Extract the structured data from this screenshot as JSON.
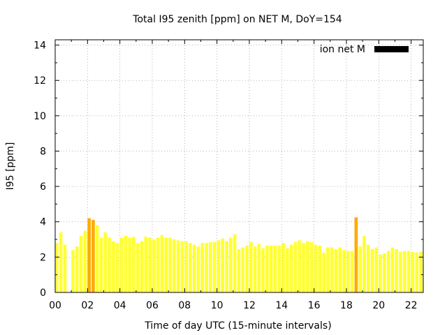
{
  "chart_data": {
    "type": "bar",
    "title": "Total I95 zenith [ppm] on NET M, DoY=154",
    "xlabel": "Time of day UTC (15-minute intervals)",
    "ylabel": "I95 [ppm]",
    "xlim": [
      0,
      22.75
    ],
    "ylim": [
      0,
      14.3
    ],
    "x_ticks": [
      0,
      2,
      4,
      6,
      8,
      10,
      12,
      14,
      16,
      18,
      20,
      22
    ],
    "x_tick_labels": [
      "00",
      "02",
      "04",
      "06",
      "08",
      "10",
      "12",
      "14",
      "16",
      "18",
      "20",
      "22"
    ],
    "y_ticks": [
      0,
      2,
      4,
      6,
      8,
      10,
      12,
      14
    ],
    "y_tick_labels": [
      "0",
      "2",
      "4",
      "6",
      "8",
      "10",
      "12",
      "14"
    ],
    "grid": true,
    "legend": {
      "position": "top-right",
      "label": "ion net M",
      "color": "#000000"
    },
    "colors": {
      "normal": "#ffff33",
      "high": "#ffaa00",
      "legend": "#000000"
    },
    "interval_hours": 0.25,
    "bar_width_hours": 0.2,
    "high_threshold": 4.0,
    "series": [
      {
        "values": [
          2.8,
          3.4,
          2.7,
          null,
          2.4,
          2.6,
          3.2,
          3.5,
          4.2,
          4.1,
          3.8,
          3.1,
          3.4,
          3.1,
          2.9,
          2.8,
          3.1,
          3.2,
          3.1,
          3.15,
          2.8,
          2.9,
          3.15,
          3.1,
          3.0,
          3.1,
          3.25,
          3.1,
          3.1,
          3.0,
          2.95,
          2.9,
          2.9,
          2.8,
          2.7,
          2.6,
          2.8,
          2.8,
          2.85,
          2.85,
          2.95,
          3.05,
          2.9,
          3.1,
          3.3,
          2.45,
          2.55,
          2.65,
          2.85,
          2.6,
          2.75,
          2.5,
          2.65,
          2.65,
          2.65,
          2.65,
          2.8,
          2.5,
          2.7,
          2.85,
          2.95,
          2.8,
          2.9,
          2.85,
          2.7,
          2.65,
          2.25,
          2.55,
          2.55,
          2.45,
          2.55,
          2.4,
          2.35,
          2.35,
          4.25,
          2.6,
          3.2,
          2.7,
          2.45,
          2.55,
          2.15,
          2.2,
          2.35,
          2.55,
          2.45,
          2.3,
          2.35,
          2.35,
          2.3,
          2.25,
          2.3
        ]
      }
    ]
  }
}
